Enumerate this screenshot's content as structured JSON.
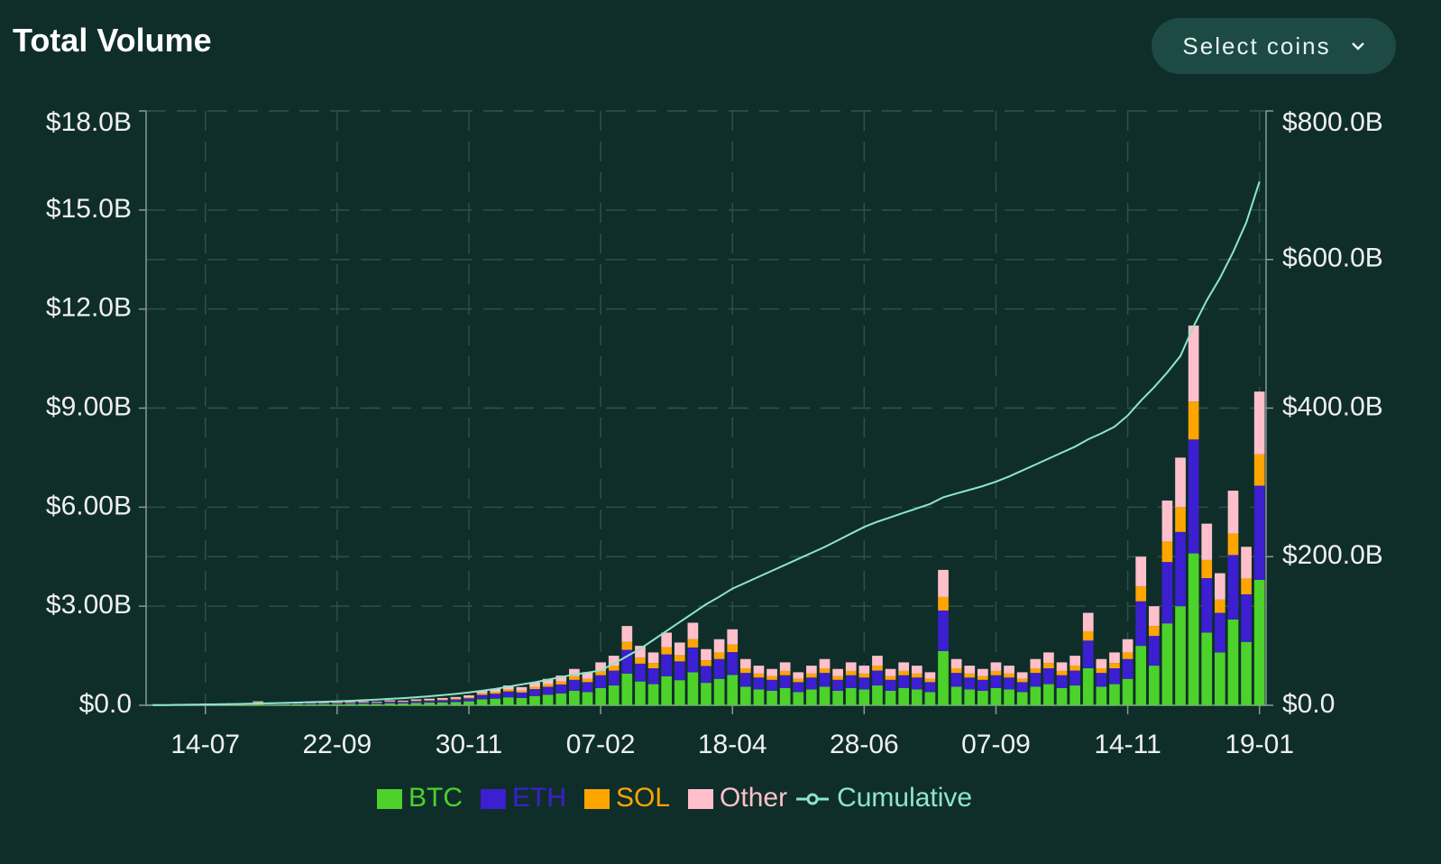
{
  "header": {
    "title": "Total Volume",
    "button": "Select coins"
  },
  "chart_data": {
    "type": "bar",
    "stacked": true,
    "grid": true,
    "categories": [
      null,
      null,
      null,
      null,
      "14-07",
      null,
      null,
      null,
      null,
      null,
      null,
      null,
      null,
      null,
      "22-09",
      null,
      null,
      null,
      null,
      null,
      null,
      null,
      null,
      null,
      "30-11",
      null,
      null,
      null,
      null,
      null,
      null,
      null,
      null,
      null,
      "07-02",
      null,
      null,
      null,
      null,
      null,
      null,
      null,
      null,
      null,
      "18-04",
      null,
      null,
      null,
      null,
      null,
      null,
      null,
      null,
      null,
      "28-06",
      null,
      null,
      null,
      null,
      null,
      null,
      null,
      null,
      null,
      "07-09",
      null,
      null,
      null,
      null,
      null,
      null,
      null,
      null,
      null,
      "14-11",
      null,
      null,
      null,
      null,
      null,
      null,
      null,
      null,
      null,
      "19-01"
    ],
    "series": [
      {
        "name": "BTC",
        "color": "#4cd22a",
        "values": [
          0.012,
          0.008,
          0.016,
          0.012,
          0.02,
          0.016,
          0.024,
          0.02,
          0.048,
          0.02,
          0.024,
          0.028,
          0.032,
          0.028,
          0.036,
          0.04,
          0.048,
          0.044,
          0.06,
          0.056,
          0.072,
          0.08,
          0.088,
          0.1,
          0.12,
          0.18,
          0.2,
          0.24,
          0.22,
          0.28,
          0.32,
          0.36,
          0.44,
          0.4,
          0.52,
          0.6,
          0.96,
          0.72,
          0.64,
          0.88,
          0.76,
          1.0,
          0.68,
          0.8,
          0.92,
          0.56,
          0.48,
          0.44,
          0.52,
          0.4,
          0.48,
          0.56,
          0.44,
          0.52,
          0.48,
          0.6,
          0.44,
          0.52,
          0.48,
          0.4,
          1.64,
          0.56,
          0.48,
          0.44,
          0.52,
          0.48,
          0.4,
          0.56,
          0.64,
          0.52,
          0.6,
          1.12,
          0.56,
          0.64,
          0.8,
          1.8,
          1.2,
          2.48,
          3.0,
          4.6,
          2.2,
          1.6,
          2.6,
          1.92,
          3.8
        ]
      },
      {
        "name": "ETH",
        "color": "#3b1fd0",
        "values": [
          0.009,
          0.006,
          0.012,
          0.009,
          0.015,
          0.012,
          0.018,
          0.015,
          0.036,
          0.015,
          0.018,
          0.021,
          0.024,
          0.021,
          0.027,
          0.03,
          0.036,
          0.033,
          0.045,
          0.042,
          0.054,
          0.06,
          0.066,
          0.075,
          0.09,
          0.135,
          0.15,
          0.18,
          0.165,
          0.21,
          0.24,
          0.27,
          0.33,
          0.3,
          0.39,
          0.45,
          0.72,
          0.54,
          0.48,
          0.66,
          0.57,
          0.75,
          0.51,
          0.6,
          0.69,
          0.42,
          0.36,
          0.33,
          0.39,
          0.3,
          0.36,
          0.42,
          0.33,
          0.39,
          0.36,
          0.45,
          0.33,
          0.39,
          0.36,
          0.3,
          1.23,
          0.42,
          0.36,
          0.33,
          0.39,
          0.36,
          0.3,
          0.42,
          0.48,
          0.39,
          0.45,
          0.84,
          0.42,
          0.48,
          0.6,
          1.35,
          0.9,
          1.86,
          2.25,
          3.45,
          1.65,
          1.2,
          1.95,
          1.44,
          2.85
        ]
      },
      {
        "name": "SOL",
        "color": "#ffa500",
        "values": [
          0.003,
          0.002,
          0.004,
          0.003,
          0.005,
          0.004,
          0.006,
          0.005,
          0.012,
          0.005,
          0.006,
          0.007,
          0.008,
          0.007,
          0.009,
          0.01,
          0.012,
          0.011,
          0.015,
          0.014,
          0.018,
          0.02,
          0.022,
          0.025,
          0.03,
          0.045,
          0.05,
          0.06,
          0.055,
          0.07,
          0.08,
          0.09,
          0.11,
          0.1,
          0.13,
          0.15,
          0.24,
          0.18,
          0.16,
          0.22,
          0.19,
          0.25,
          0.17,
          0.2,
          0.23,
          0.14,
          0.12,
          0.11,
          0.13,
          0.1,
          0.12,
          0.14,
          0.11,
          0.13,
          0.12,
          0.15,
          0.11,
          0.13,
          0.12,
          0.1,
          0.41,
          0.14,
          0.12,
          0.11,
          0.13,
          0.12,
          0.1,
          0.14,
          0.16,
          0.13,
          0.15,
          0.28,
          0.14,
          0.16,
          0.2,
          0.45,
          0.3,
          0.62,
          0.75,
          1.15,
          0.55,
          0.4,
          0.65,
          0.48,
          0.95
        ]
      },
      {
        "name": "Other",
        "color": "#ffc0cb",
        "values": [
          0.006,
          0.004,
          0.008,
          0.006,
          0.01,
          0.008,
          0.012,
          0.01,
          0.024,
          0.01,
          0.012,
          0.014,
          0.016,
          0.014,
          0.018,
          0.02,
          0.024,
          0.022,
          0.03,
          0.028,
          0.036,
          0.04,
          0.044,
          0.05,
          0.06,
          0.09,
          0.1,
          0.12,
          0.11,
          0.14,
          0.16,
          0.18,
          0.22,
          0.2,
          0.26,
          0.3,
          0.48,
          0.36,
          0.32,
          0.44,
          0.38,
          0.5,
          0.34,
          0.4,
          0.46,
          0.28,
          0.24,
          0.22,
          0.26,
          0.2,
          0.24,
          0.28,
          0.22,
          0.26,
          0.24,
          0.3,
          0.22,
          0.26,
          0.24,
          0.2,
          0.82,
          0.28,
          0.24,
          0.22,
          0.26,
          0.24,
          0.2,
          0.28,
          0.32,
          0.26,
          0.3,
          0.56,
          0.28,
          0.32,
          0.4,
          0.9,
          0.6,
          1.24,
          1.5,
          2.3,
          1.1,
          0.8,
          1.3,
          0.96,
          1.9
        ]
      },
      {
        "name": "Cumulative",
        "type": "line",
        "axis": "y2",
        "color": "#8ee6c9",
        "values": [
          0.2,
          0.4,
          0.6,
          0.8,
          1,
          1.3,
          1.6,
          1.9,
          2.4,
          2.8,
          3.2,
          3.7,
          4.2,
          4.7,
          5.3,
          6,
          6.8,
          7.6,
          8.6,
          9.6,
          10.8,
          12.2,
          13.6,
          15.3,
          17.3,
          19.5,
          22,
          25,
          28,
          31,
          34.5,
          38,
          41.5,
          44,
          47,
          56,
          66,
          76,
          88,
          100,
          112,
          124,
          136,
          146,
          157,
          165,
          173,
          181,
          189,
          197,
          205,
          213,
          222,
          231,
          240,
          247,
          253,
          259,
          265,
          271,
          280,
          285,
          290,
          295,
          301,
          308,
          316,
          324,
          332,
          340,
          348,
          358,
          366,
          375,
          390,
          410,
          428,
          448,
          470,
          510,
          545,
          575,
          610,
          650,
          705
        ]
      }
    ],
    "ylim": [
      0,
      18
    ],
    "yticks": [
      {
        "value": 0,
        "label": "$0.0"
      },
      {
        "value": 3,
        "label": "$3.00B"
      },
      {
        "value": 6,
        "label": "$6.00B"
      },
      {
        "value": 9,
        "label": "$9.00B"
      },
      {
        "value": 12,
        "label": "$12.0B"
      },
      {
        "value": 15,
        "label": "$15.0B"
      },
      {
        "value": 18,
        "label": "$18.0B"
      }
    ],
    "y2lim": [
      0,
      800
    ],
    "y2ticks": [
      {
        "value": 0,
        "label": "$0.0"
      },
      {
        "value": 200,
        "label": "$200.0B"
      },
      {
        "value": 400,
        "label": "$400.0B"
      },
      {
        "value": 600,
        "label": "$600.0B"
      },
      {
        "value": 800,
        "label": "$800.0B"
      }
    ]
  }
}
